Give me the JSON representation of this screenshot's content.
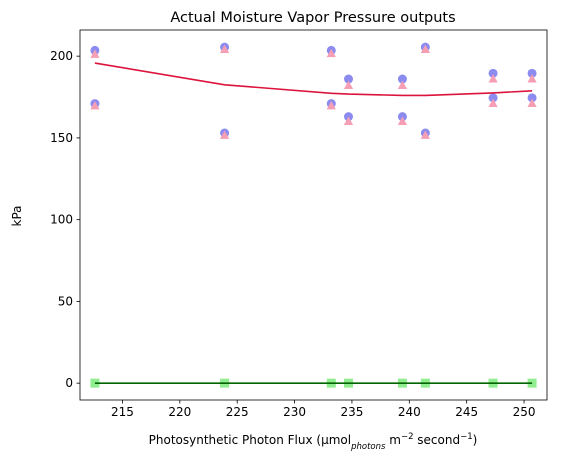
{
  "chart_data": {
    "type": "scatter",
    "title": "Actual Moisture Vapor Pressure outputs",
    "xlabel": {
      "prefix": "Photosynthetic Photon Flux (µmol",
      "sub": "photons",
      "mid1": " m",
      "sup1": "−2",
      "mid2": " second",
      "sup2": "−1",
      "suffix": ")"
    },
    "ylabel": "kPa",
    "xlim": [
      211.3,
      252.0
    ],
    "ylim": [
      -10.3,
      216.0
    ],
    "xticks": [
      215,
      220,
      225,
      230,
      235,
      240,
      245,
      250
    ],
    "yticks": [
      0,
      50,
      100,
      150,
      200
    ],
    "grid": false,
    "scatter_series": [
      {
        "color": "#8b8bf0",
        "marker": "circle",
        "points": [
          [
            212.6,
            203.5
          ],
          [
            212.6,
            171.0
          ],
          [
            223.9,
            205.5
          ],
          [
            223.9,
            153.0
          ],
          [
            233.2,
            203.5
          ],
          [
            233.2,
            171.0
          ],
          [
            234.7,
            186.0
          ],
          [
            234.7,
            163.0
          ],
          [
            239.4,
            186.0
          ],
          [
            239.4,
            163.0
          ],
          [
            241.4,
            205.5
          ],
          [
            241.4,
            153.0
          ],
          [
            247.3,
            189.5
          ],
          [
            247.3,
            174.5
          ],
          [
            250.7,
            189.5
          ],
          [
            250.7,
            174.5
          ]
        ]
      },
      {
        "color": "#f59eb4",
        "marker": "triangle",
        "points": [
          [
            212.6,
            201.0
          ],
          [
            212.6,
            169.5
          ],
          [
            223.9,
            204.0
          ],
          [
            223.9,
            151.5
          ],
          [
            233.2,
            201.5
          ],
          [
            233.2,
            169.5
          ],
          [
            234.7,
            182.0
          ],
          [
            234.7,
            160.0
          ],
          [
            239.4,
            182.0
          ],
          [
            239.4,
            160.0
          ],
          [
            241.4,
            204.0
          ],
          [
            241.4,
            151.5
          ],
          [
            247.3,
            186.0
          ],
          [
            247.3,
            171.0
          ],
          [
            250.7,
            186.0
          ],
          [
            250.7,
            171.0
          ]
        ]
      },
      {
        "color": "#90ee90",
        "marker": "square",
        "points": [
          [
            212.6,
            0
          ],
          [
            223.9,
            0
          ],
          [
            233.2,
            0
          ],
          [
            234.7,
            0
          ],
          [
            239.4,
            0
          ],
          [
            241.4,
            0
          ],
          [
            247.3,
            0
          ],
          [
            250.7,
            0
          ]
        ]
      }
    ],
    "line_series": [
      {
        "color": "#dc143c",
        "width": 1.6,
        "points": [
          [
            212.6,
            195.8
          ],
          [
            223.9,
            182.5
          ],
          [
            233.2,
            177.3
          ],
          [
            234.7,
            176.8
          ],
          [
            239.4,
            176.0
          ],
          [
            241.4,
            176.0
          ],
          [
            247.3,
            177.5
          ],
          [
            250.7,
            178.8
          ]
        ]
      },
      {
        "color": "#006400",
        "width": 1.6,
        "points": [
          [
            212.6,
            0
          ],
          [
            250.7,
            0
          ]
        ]
      }
    ]
  }
}
